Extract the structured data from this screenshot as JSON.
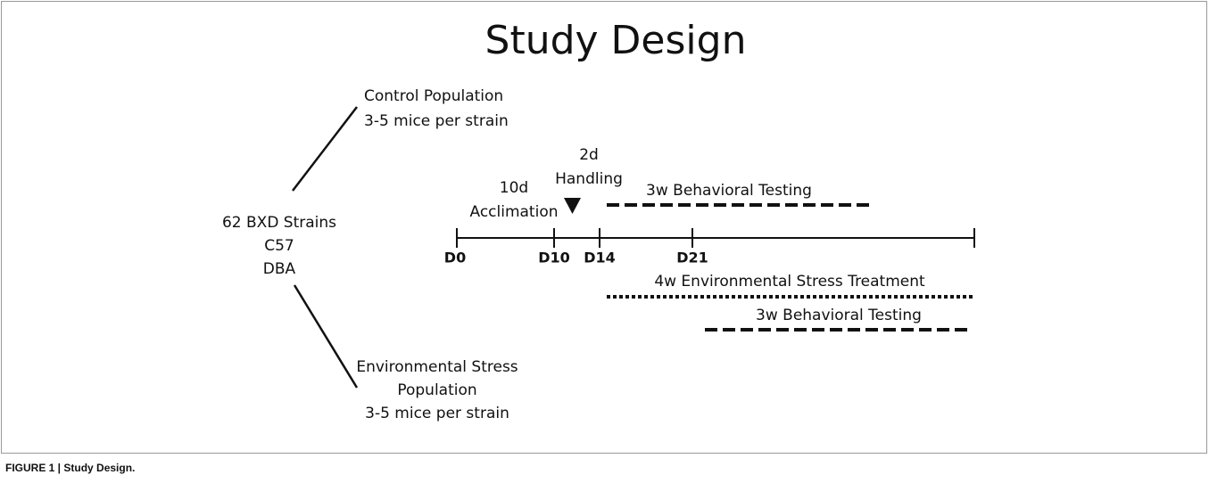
{
  "title": "Study Design",
  "strains": {
    "lines": [
      "62 BXD Strains",
      "C57",
      "DBA"
    ]
  },
  "control_group": {
    "lines": [
      "Control Population",
      "3-5 mice per strain"
    ]
  },
  "stress_group": {
    "lines": [
      "Environmental Stress",
      "Population",
      "3-5 mice per strain"
    ]
  },
  "timeline": {
    "days": [
      "D0",
      "D10",
      "D14",
      "D21"
    ],
    "acclimation": [
      "10d",
      "Acclimation"
    ],
    "handling": [
      "2d",
      "Handling"
    ],
    "control_testing": "3w Behavioral Testing",
    "stress_treatment": "4w Environmental Stress Treatment",
    "stress_testing": "3w Behavioral Testing"
  },
  "caption": "FIGURE 1 | Study Design."
}
